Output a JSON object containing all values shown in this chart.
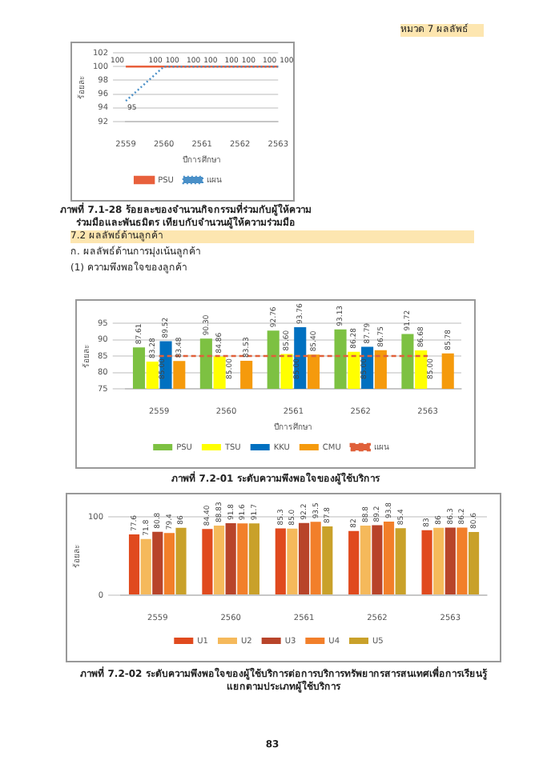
{
  "chart_data": [
    {
      "type": "line",
      "ylabel": "ร้อยละ",
      "xlabel": "ปีการศึกษา",
      "categories": [
        "2559",
        "2560",
        "2561",
        "2562",
        "2563"
      ],
      "ylim": [
        92,
        102
      ],
      "yticks": [
        92,
        94,
        96,
        98,
        100,
        102
      ],
      "grid": "y",
      "legend": "bottom",
      "data_labels": true,
      "annotations": [
        "หมวด 7 ผลลัพธ์",
        "ภาพที่ 7.1-28 ร้อยละของจำนวนกิจกรรมที่ร่วมกับผู้ให้ความร่วมมือและพันธมิตร เทียบกับจำนวนผู้ให้ความร่วมมือ"
      ],
      "series": [
        {
          "name": "PSU",
          "color": "#e8603c",
          "line_style": "solid",
          "values": [
            100,
            100,
            100,
            100,
            100
          ]
        },
        {
          "name": "แผน",
          "color": "#4a90c8",
          "line_style": "dotted",
          "values": [
            95,
            100,
            100,
            100,
            100
          ]
        }
      ]
    },
    {
      "type": "bar",
      "title": "(1) ความพึงพอใจของลูกค้า",
      "ylabel": "ร้อยละ",
      "xlabel": "ปีการศึกษา",
      "categories": [
        "2559",
        "2560",
        "2561",
        "2562",
        "2563"
      ],
      "ylim": [
        75,
        95
      ],
      "yticks": [
        75,
        80,
        85,
        90,
        95
      ],
      "grid": "y",
      "legend": "bottom",
      "annotations": [
        "7.2 ผลลัพธ์ด้านลูกค้า",
        "ก. ผลลัพธ์ด้านการมุ่งเน้นลูกค้า",
        "ภาพที่ 7.2-01 ระดับความพึงพอใจของผู้ใช้บริการ"
      ],
      "series": [
        {
          "name": "PSU",
          "color": "#7dc142",
          "values": [
            87.61,
            90.3,
            92.76,
            93.13,
            91.72
          ],
          "value_labels": [
            "87.61",
            "90.30",
            "92.76",
            "93.13",
            "91.72"
          ]
        },
        {
          "name": "TSU",
          "color": "#ffff00",
          "values": [
            83.28,
            84.86,
            85.6,
            86.28,
            86.68
          ],
          "value_labels": [
            "83.28",
            "84.86",
            "85.60",
            "86.28",
            "86.68"
          ]
        },
        {
          "name": "KKU",
          "color": "#0070c0",
          "values": [
            89.52,
            null,
            93.76,
            87.79,
            null
          ],
          "value_labels": [
            "89.52",
            null,
            "93.76",
            "87.79",
            null
          ]
        },
        {
          "name": "CMU",
          "color": "#f59a0c",
          "values": [
            83.48,
            83.53,
            85.4,
            86.75,
            85.78
          ],
          "value_labels": [
            "83.48",
            "83.53",
            "85.40",
            "86.75",
            "85.78"
          ]
        },
        {
          "name": "แผน",
          "type": "line",
          "line_style": "dashed",
          "color": "#e0603a",
          "values": [
            85,
            85,
            85,
            85,
            85
          ],
          "value_labels": [
            "85.00",
            "85.00",
            "85.00",
            "85.00",
            "85.00"
          ]
        }
      ]
    },
    {
      "type": "bar",
      "ylabel": "ร้อยละ",
      "categories": [
        "2559",
        "2560",
        "2561",
        "2562",
        "2563"
      ],
      "ylim": [
        0,
        100
      ],
      "yticks": [
        0,
        100
      ],
      "grid": "y",
      "legend": "bottom",
      "annotations": [
        "ภาพที่ 7.2-02 ระดับความพึงพอใจของผู้ใช้บริการต่อการบริการทรัพยากรสารสนเทศเพื่อการเรียนรู้ แยกตามประเภทผู้ใช้บริการ",
        "83"
      ],
      "series": [
        {
          "name": "U1",
          "color": "#e04a1e",
          "values": [
            77.6,
            84.4,
            85.3,
            82,
            83
          ],
          "value_labels": [
            "77.6",
            "84.40",
            "85.3",
            "82",
            "83"
          ]
        },
        {
          "name": "U2",
          "color": "#f5b95b",
          "values": [
            71.8,
            88.83,
            85,
            88.8,
            86
          ],
          "value_labels": [
            "71.8",
            "88.83",
            "85.0",
            "88.8",
            "86"
          ]
        },
        {
          "name": "U3",
          "color": "#b8442a",
          "values": [
            80.8,
            91.8,
            92.2,
            89.2,
            86.3
          ],
          "value_labels": [
            "80.8",
            "91.8",
            "92.2",
            "89.2",
            "86.3"
          ]
        },
        {
          "name": "U4",
          "color": "#f27f2a",
          "values": [
            79.4,
            91.6,
            93.5,
            93.8,
            86.2
          ],
          "value_labels": [
            "79.4",
            "91.6",
            "93.5",
            "93.8",
            "86.2"
          ]
        },
        {
          "name": "U5",
          "color": "#c9a12a",
          "values": [
            86,
            91.7,
            87.8,
            85.4,
            80.6
          ],
          "value_labels": [
            "86",
            "91.7",
            "87.8",
            "85.4",
            "80.6"
          ]
        }
      ]
    }
  ]
}
